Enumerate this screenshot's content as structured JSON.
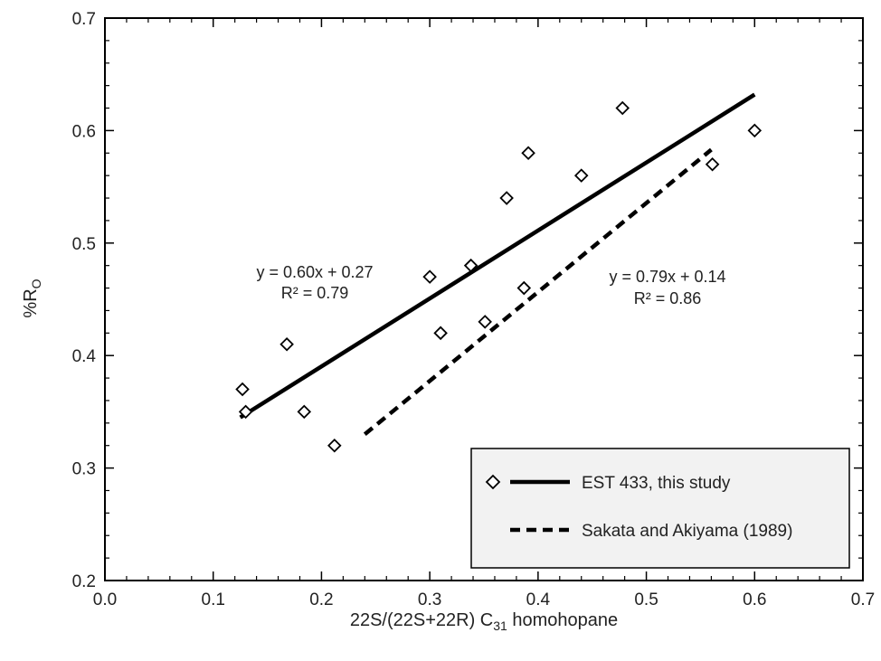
{
  "chart_data": {
    "type": "scatter",
    "xlabel": "22S/(22S+22R) C",
    "xlabel_sub": "31",
    "xlabel_tail": " homohopane",
    "ylabel": "%R",
    "ylabel_sub": "O",
    "xlim": [
      0.0,
      0.7
    ],
    "ylim": [
      0.2,
      0.7
    ],
    "xticks": [
      "0.0",
      "0.1",
      "0.2",
      "0.3",
      "0.4",
      "0.5",
      "0.6",
      "0.7"
    ],
    "yticks": [
      "0.2",
      "0.3",
      "0.4",
      "0.5",
      "0.6",
      "0.7"
    ],
    "grid": false,
    "legend_position": "bottom-right",
    "series": [
      {
        "name": "EST 433, this study",
        "marker": "diamond",
        "points": [
          [
            0.127,
            0.37
          ],
          [
            0.13,
            0.35
          ],
          [
            0.168,
            0.41
          ],
          [
            0.184,
            0.35
          ],
          [
            0.212,
            0.32
          ],
          [
            0.3,
            0.47
          ],
          [
            0.31,
            0.42
          ],
          [
            0.338,
            0.48
          ],
          [
            0.351,
            0.43
          ],
          [
            0.371,
            0.54
          ],
          [
            0.387,
            0.46
          ],
          [
            0.391,
            0.58
          ],
          [
            0.44,
            0.56
          ],
          [
            0.478,
            0.62
          ],
          [
            0.561,
            0.57
          ],
          [
            0.6,
            0.6
          ]
        ],
        "fit": {
          "x": [
            0.125,
            0.6
          ],
          "y": [
            0.345,
            0.632
          ],
          "style": "solid"
        },
        "equation": "y = 0.60x + 0.27",
        "r2": "R² = 0.79"
      },
      {
        "name": "Sakata and Akiyama (1989)",
        "fit": {
          "x": [
            0.24,
            0.56
          ],
          "y": [
            0.33,
            0.583
          ],
          "style": "dashed"
        },
        "equation": "y = 0.79x + 0.14",
        "r2": "R² = 0.86"
      }
    ]
  }
}
